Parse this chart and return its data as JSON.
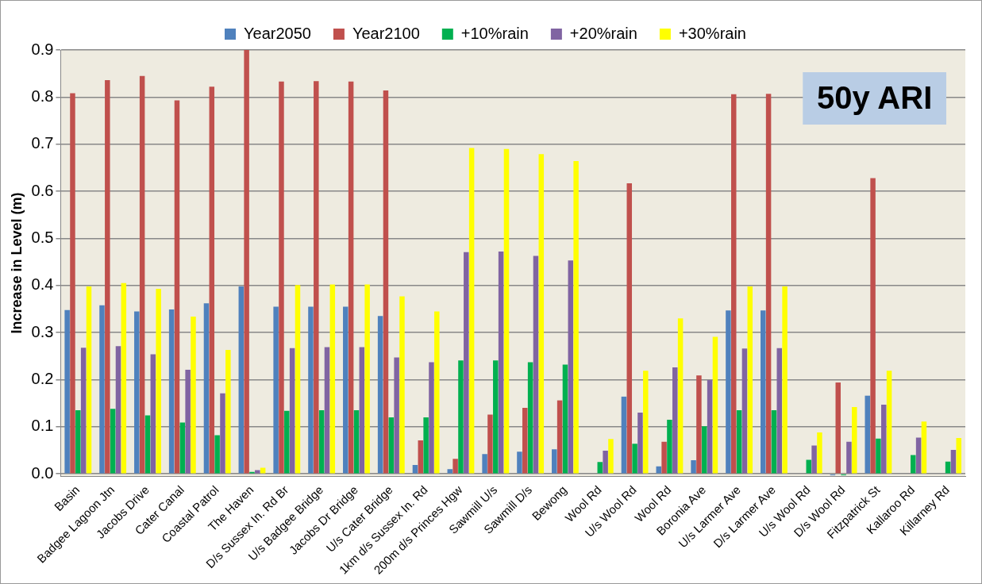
{
  "chart_data": {
    "type": "bar",
    "ylabel": "Increase in Level (m)",
    "categories": [
      "Basin",
      "Badgee Lagoon Jtn",
      "Jacobs Drive",
      "Cater Canal",
      "Coastal Patrol",
      "The Haven",
      "D/s Sussex In. Rd Br",
      "U/s Badgee Bridge",
      "Jacobs Dr Bridge",
      "U/s Cater Bridge",
      "1km d/s Sussex In. Rd",
      "200m d/s Princes Hgw",
      "Sawmill U/s",
      "Sawmill D/s",
      "Bewong",
      "Wool Rd",
      "U/s Wool Rd",
      "Wool Rd",
      "Boronia Ave",
      "U/s Larmer Ave",
      "D/s Larmer Ave",
      "U/s Wool Rd",
      "D/s Wool Rd",
      "Fitzpatrick St",
      "Kallaroo Rd",
      "Killarney Rd"
    ],
    "series": [
      {
        "name": "Year2050",
        "color": "#4f81bd",
        "values": [
          0.348,
          0.358,
          0.345,
          0.349,
          0.362,
          0.398,
          0.355,
          0.355,
          0.355,
          0.335,
          0.019,
          0.01,
          0.042,
          0.047,
          0.052,
          null,
          0.164,
          0.016,
          0.029,
          0.347,
          0.347,
          null,
          -0.003,
          0.166,
          null,
          null
        ]
      },
      {
        "name": "Year2100",
        "color": "#c0504d",
        "values": [
          0.808,
          0.836,
          0.845,
          0.793,
          0.822,
          0.9,
          0.833,
          0.834,
          0.833,
          0.814,
          0.071,
          0.032,
          0.126,
          0.14,
          0.156,
          null,
          0.617,
          0.068,
          0.209,
          0.806,
          0.807,
          null,
          0.194,
          0.628,
          null,
          null
        ]
      },
      {
        "name": "+10%rain",
        "color": "#00b050",
        "values": [
          0.135,
          0.138,
          0.124,
          0.109,
          0.082,
          0.004,
          0.134,
          0.135,
          0.135,
          0.12,
          0.12,
          0.241,
          0.241,
          0.237,
          0.232,
          0.025,
          0.064,
          0.115,
          0.101,
          0.135,
          0.135,
          0.03,
          -0.003,
          0.075,
          0.04,
          0.026
        ]
      },
      {
        "name": "+20%rain",
        "color": "#8064a2",
        "values": [
          0.268,
          0.271,
          0.254,
          0.221,
          0.171,
          0.008,
          0.267,
          0.269,
          0.269,
          0.247,
          0.237,
          0.471,
          0.472,
          0.463,
          0.453,
          0.049,
          0.13,
          0.226,
          0.199,
          0.266,
          0.267,
          0.06,
          0.068,
          0.147,
          0.077,
          0.051
        ]
      },
      {
        "name": "+30%rain",
        "color": "#ffff00",
        "values": [
          0.398,
          0.405,
          0.393,
          0.334,
          0.263,
          0.013,
          0.401,
          0.402,
          0.402,
          0.377,
          0.345,
          0.692,
          0.69,
          0.679,
          0.664,
          0.074,
          0.219,
          0.33,
          0.291,
          0.398,
          0.398,
          0.088,
          0.142,
          0.219,
          0.111,
          0.076
        ]
      }
    ],
    "ylim": [
      -0.005,
      0.9
    ],
    "yticks": [
      {
        "value": 0,
        "label": "0.0"
      },
      0.1,
      0.2,
      0.3,
      0.4,
      0.5,
      0.6,
      0.7,
      0.8,
      0.9
    ],
    "grid": "y",
    "legend": "top",
    "annotations": [
      "50y ARI"
    ]
  }
}
